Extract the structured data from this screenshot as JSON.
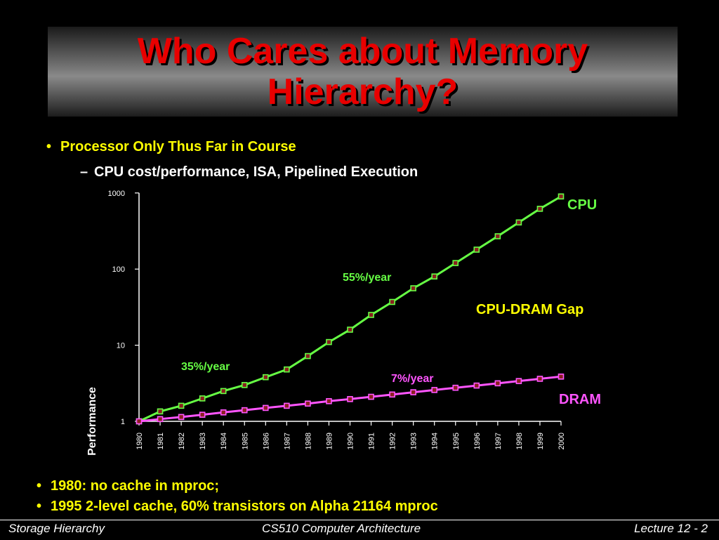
{
  "slide": {
    "title_line1": "Who Cares about Memory",
    "title_line2": "Hierarchy?",
    "bullet1": "Processor Only Thus Far in Course",
    "sub_bullet1": "CPU cost/performance, ISA, Pipelined Execution",
    "bullet2": "1980: no cache in mproc;",
    "bullet3": "1995 2-level cache, 60% transistors on Alpha 21164  mproc",
    "bullet_marker": "•",
    "dash_marker": "–"
  },
  "footer": {
    "left": "Storage Hierarchy",
    "center": "CS510 Computer Architecture",
    "right": "Lecture 12 - 2"
  },
  "colors": {
    "background": "#000000",
    "title": "#e80000",
    "bullet": "#ffff00",
    "cpu_line": "#66ff44",
    "dram_line": "#ff55ff",
    "gap_label": "#ffff00"
  },
  "chart_data": {
    "type": "line",
    "xlabel": "",
    "ylabel": "Performance",
    "yscale": "log",
    "ylim": [
      1,
      1000
    ],
    "y_ticks": [
      "1",
      "10",
      "100",
      "1000"
    ],
    "categories": [
      "1980",
      "1981",
      "1982",
      "1983",
      "1984",
      "1985",
      "1986",
      "1987",
      "1988",
      "1989",
      "1990",
      "1991",
      "1992",
      "1993",
      "1994",
      "1995",
      "1996",
      "1997",
      "1998",
      "1999",
      "2000"
    ],
    "series": [
      {
        "name": "CPU",
        "color": "#66ff44",
        "values": [
          1,
          1.35,
          1.6,
          2.0,
          2.5,
          3.0,
          3.8,
          4.8,
          7.2,
          11,
          16,
          25,
          37,
          56,
          80,
          120,
          180,
          270,
          410,
          620,
          900
        ]
      },
      {
        "name": "DRAM",
        "color": "#ff55ff",
        "values": [
          1,
          1.07,
          1.14,
          1.22,
          1.31,
          1.4,
          1.5,
          1.6,
          1.71,
          1.84,
          1.96,
          2.1,
          2.25,
          2.41,
          2.58,
          2.76,
          2.95,
          3.16,
          3.38,
          3.62,
          3.87
        ]
      }
    ],
    "annotations": {
      "cpu_rate_early": "35%/year",
      "cpu_rate_late": "55%/year",
      "dram_rate": "7%/year",
      "gap": "CPU-DRAM Gap",
      "cpu_label": "CPU",
      "dram_label": "DRAM"
    }
  }
}
